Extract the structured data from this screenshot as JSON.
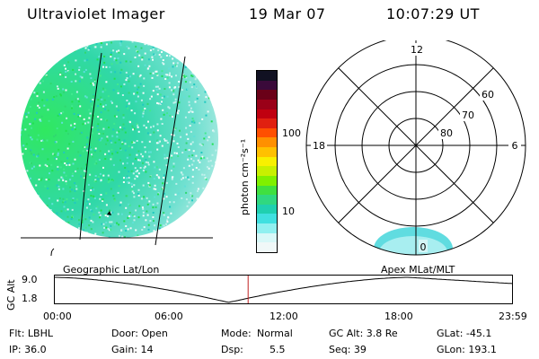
{
  "header": {
    "title": "Ultraviolet Imager",
    "date": "19 Mar 07",
    "time": "10:07:29 UT"
  },
  "colorbar": {
    "label": "photon cm⁻²s⁻¹",
    "ticks": [
      "100",
      "10"
    ],
    "colors": [
      "#111122",
      "#3a0a3a",
      "#6a0018",
      "#9a0018",
      "#c00010",
      "#e02010",
      "#ff5000",
      "#ff9000",
      "#ffc000",
      "#f8f000",
      "#c8f000",
      "#80f000",
      "#40e040",
      "#30d880",
      "#20d0b0",
      "#40e0e0",
      "#90f0f0",
      "#d8f8f8",
      "#f0f8f8"
    ]
  },
  "polar": {
    "hours": {
      "top": "12",
      "left": "18",
      "right": "6",
      "bottom": "0"
    },
    "lats": [
      "60",
      "70",
      "80"
    ]
  },
  "strip": {
    "left_label": "Geographic Lat/Lon",
    "right_label": "Apex MLat/MLT",
    "ylabel": "GC Alt",
    "yticks": [
      "9.0",
      "1.8"
    ],
    "xticks": [
      "00:00",
      "06:00",
      "12:00",
      "18:00",
      "23:59"
    ],
    "marker_hour": 10.125
  },
  "info": {
    "col1": [
      "Flt: LBHL",
      "IP: 36.0"
    ],
    "col2": [
      "Door: Open",
      "Gain: 14"
    ],
    "col3a": [
      "Mode:",
      "Dsp:"
    ],
    "col3b": [
      "Normal",
      "5.5"
    ],
    "col4": [
      "GC Alt: 3.8 Re",
      "Seq: 39"
    ],
    "col5": [
      "GLat: -45.1",
      "GLon: 193.1"
    ]
  }
}
